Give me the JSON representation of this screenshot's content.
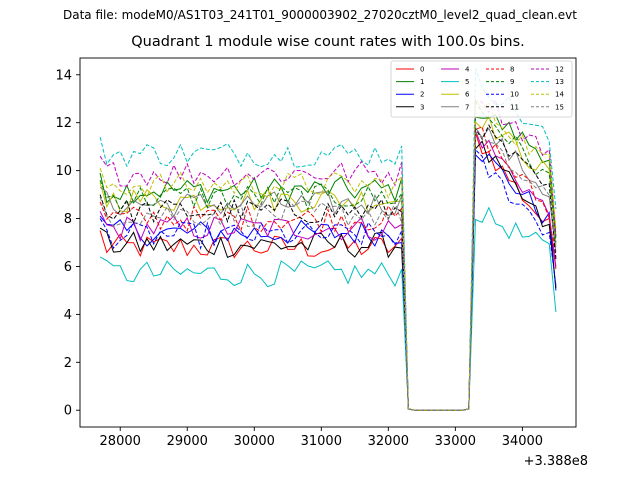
{
  "suptitle": "Data file: modeM0/AS1T03_241T01_9000003902_27020cztM0_level2_quad_clean.evt",
  "chart_data": {
    "type": "line",
    "title": "Quadrant 1 module wise count rates with 100.0s bins.",
    "xlabel": "",
    "ylabel": "",
    "x_offset_label": "+3.388e8",
    "xlim": [
      27400,
      34800
    ],
    "ylim": [
      -0.7,
      14.7
    ],
    "xticks": [
      28000,
      29000,
      30000,
      31000,
      32000,
      33000,
      34000
    ],
    "yticks": [
      0,
      2,
      4,
      6,
      8,
      10,
      12,
      14
    ],
    "legend_position": "top-right",
    "x_start": 27700,
    "x_step": 100,
    "gap_start": 32300,
    "gap_end": 33200,
    "x_end": 34500,
    "series": [
      {
        "name": "0",
        "color": "#ff0000",
        "dash": "solid",
        "pre_mean": 6.8,
        "post_start": 11.4,
        "post_end": 7.6,
        "end": 5.9
      },
      {
        "name": "1",
        "color": "#008000",
        "dash": "solid",
        "pre_mean": 9.2,
        "post_start": 12.6,
        "post_end": 10.6,
        "end": 7.2
      },
      {
        "name": "2",
        "color": "#0000ff",
        "dash": "solid",
        "pre_mean": 7.4,
        "post_start": 11.0,
        "post_end": 7.9,
        "end": 5.0
      },
      {
        "name": "3",
        "color": "#000000",
        "dash": "solid",
        "pre_mean": 6.9,
        "post_start": 11.2,
        "post_end": 7.5,
        "end": 5.1
      },
      {
        "name": "4",
        "color": "#bf00bf",
        "dash": "solid",
        "pre_mean": 7.6,
        "post_start": 11.6,
        "post_end": 8.2,
        "end": 6.0
      },
      {
        "name": "5",
        "color": "#00bfbf",
        "dash": "solid",
        "pre_mean": 5.7,
        "post_start": 8.3,
        "post_end": 6.7,
        "end": 4.1
      },
      {
        "name": "6",
        "color": "#bfbf00",
        "dash": "solid",
        "pre_mean": 8.8,
        "post_start": 12.4,
        "post_end": 9.8,
        "end": 6.9
      },
      {
        "name": "7",
        "color": "#808080",
        "dash": "solid",
        "pre_mean": 8.6,
        "post_start": 12.1,
        "post_end": 9.0,
        "end": 6.6
      },
      {
        "name": "8",
        "color": "#ff0000",
        "dash": "dashed",
        "pre_mean": 8.0,
        "post_start": 11.8,
        "post_end": 8.3,
        "end": 6.4
      },
      {
        "name": "9",
        "color": "#008000",
        "dash": "dashed",
        "pre_mean": 8.9,
        "post_start": 12.8,
        "post_end": 9.6,
        "end": 7.0
      },
      {
        "name": "10",
        "color": "#0000ff",
        "dash": "dashed",
        "pre_mean": 7.3,
        "post_start": 10.5,
        "post_end": 7.4,
        "end": 5.2
      },
      {
        "name": "11",
        "color": "#000000",
        "dash": "dashed",
        "pre_mean": 8.3,
        "post_start": 12.0,
        "post_end": 9.1,
        "end": 6.3
      },
      {
        "name": "12",
        "color": "#bf00bf",
        "dash": "dashed",
        "pre_mean": 9.9,
        "post_start": 13.3,
        "post_end": 10.7,
        "end": 7.3
      },
      {
        "name": "13",
        "color": "#00bfbf",
        "dash": "dashed",
        "pre_mean": 10.7,
        "post_start": 13.9,
        "post_end": 11.3,
        "end": 8.4
      },
      {
        "name": "14",
        "color": "#bfbf00",
        "dash": "dashed",
        "pre_mean": 9.4,
        "post_start": 12.9,
        "post_end": 10.3,
        "end": 7.6
      },
      {
        "name": "15",
        "color": "#808080",
        "dash": "dashed",
        "pre_mean": 8.2,
        "post_start": 11.5,
        "post_end": 8.7,
        "end": 6.8
      }
    ]
  }
}
